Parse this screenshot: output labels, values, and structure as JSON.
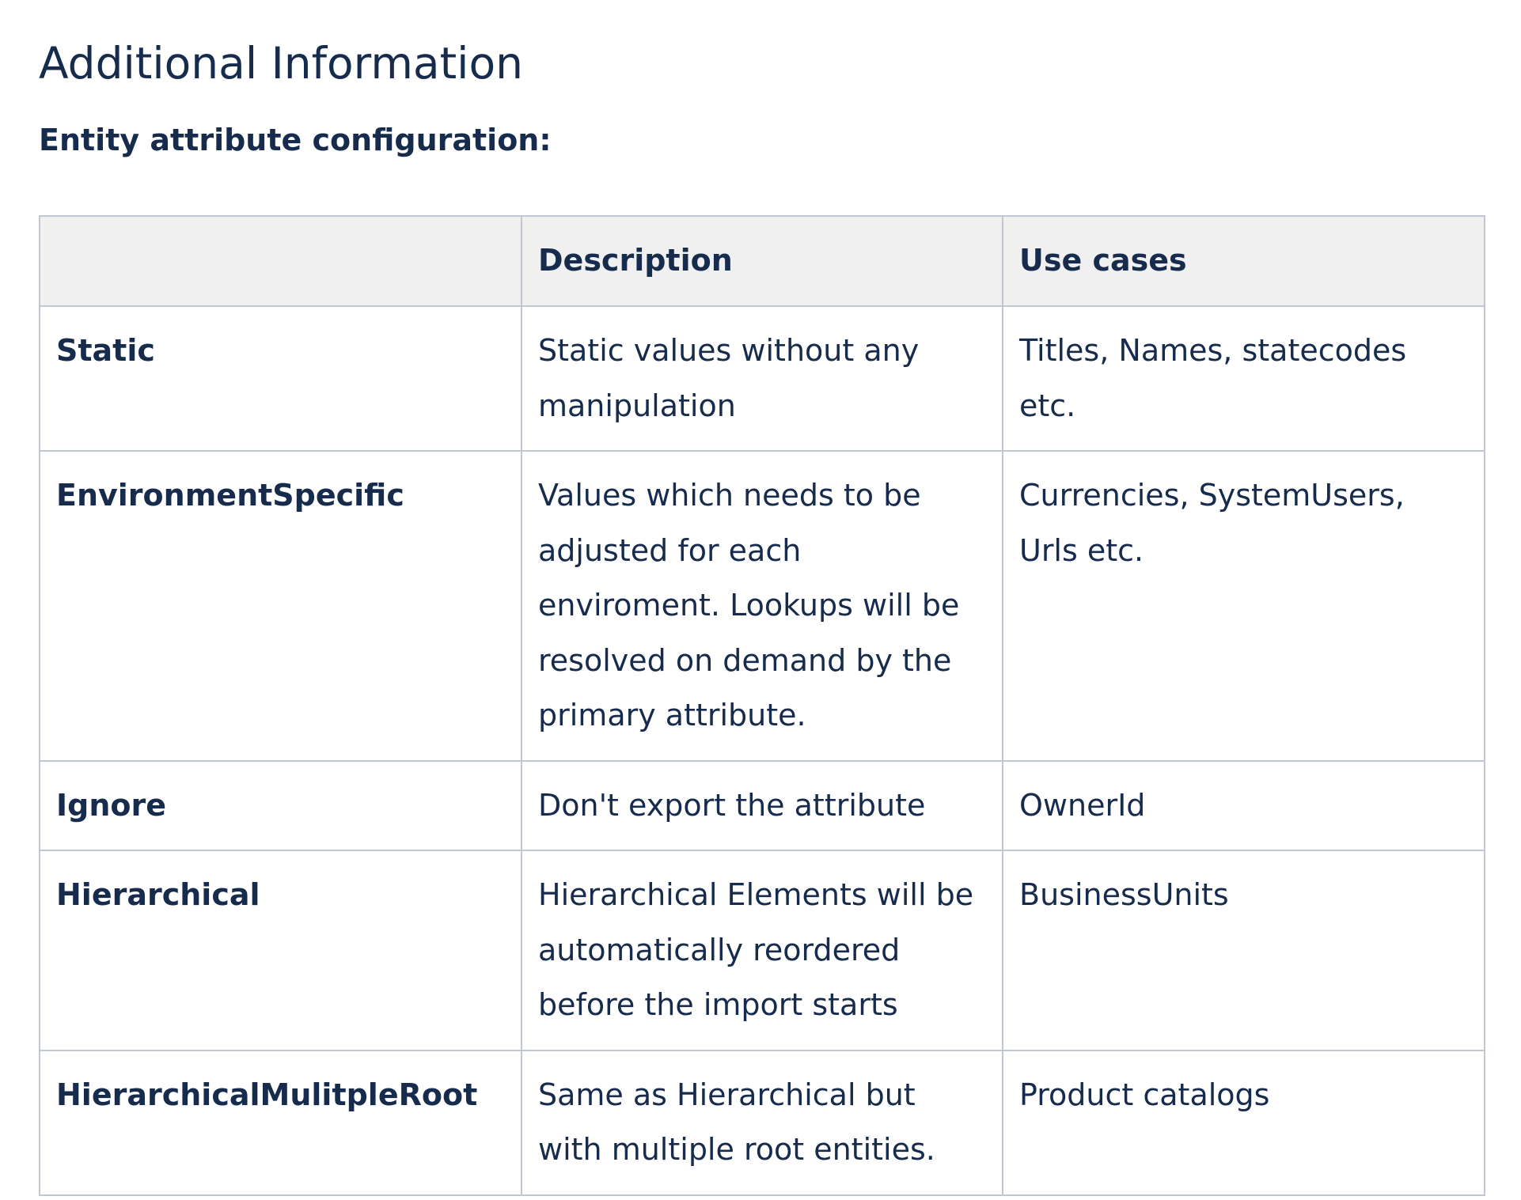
{
  "page": {
    "title": "Additional Information",
    "section_label": "Entity attribute configuration:"
  },
  "table": {
    "headers": [
      "",
      "Description",
      "Use cases"
    ],
    "rows": [
      {
        "name": "Static",
        "description": "Static values without any manipulation",
        "use_cases": "Titles, Names, statecodes etc."
      },
      {
        "name": "EnvironmentSpecific",
        "description": "Values which needs to be adjusted for each enviroment. Lookups will be resolved on demand by the primary attribute.",
        "use_cases": "Currencies, SystemUsers, Urls etc."
      },
      {
        "name": "Ignore",
        "description": "Don't export the attribute",
        "use_cases": "OwnerId"
      },
      {
        "name": "Hierarchical",
        "description": "Hierarchical Elements will be automatically reordered before the import starts",
        "use_cases": "BusinessUnits"
      },
      {
        "name": "HierarchicalMulitpleRoot",
        "description": "Same as Hierarchical but with multiple root entities.",
        "use_cases": "Product catalogs"
      }
    ]
  }
}
